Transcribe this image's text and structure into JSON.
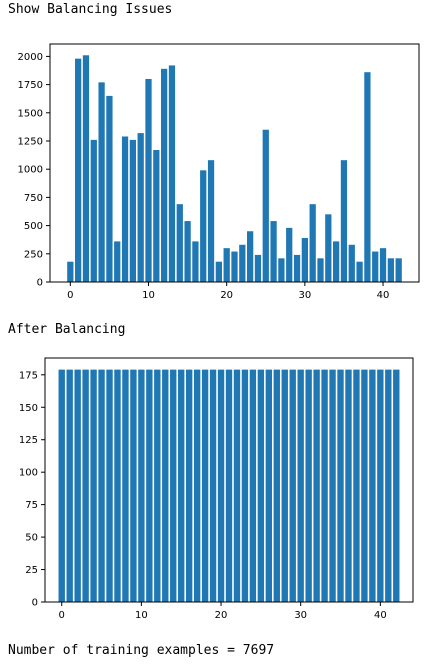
{
  "output": {
    "caption1": "Show Balancing Issues",
    "caption2": "After Balancing",
    "summary": "Number of training examples = 7697"
  },
  "colors": {
    "bar": "#1f77b4",
    "axis": "#000000"
  },
  "chart_data": [
    {
      "type": "bar",
      "title": "",
      "xlabel": "",
      "ylabel": "",
      "x": [
        0,
        1,
        2,
        3,
        4,
        5,
        6,
        7,
        8,
        9,
        10,
        11,
        12,
        13,
        14,
        15,
        16,
        17,
        18,
        19,
        20,
        21,
        22,
        23,
        24,
        25,
        26,
        27,
        28,
        29,
        30,
        31,
        32,
        33,
        34,
        35,
        36,
        37,
        38,
        39,
        40,
        41,
        42
      ],
      "values": [
        180,
        1980,
        2010,
        1260,
        1770,
        1650,
        360,
        1290,
        1260,
        1320,
        1800,
        1170,
        1890,
        1920,
        690,
        540,
        360,
        990,
        1080,
        180,
        300,
        270,
        330,
        450,
        240,
        1350,
        540,
        210,
        480,
        240,
        390,
        690,
        210,
        600,
        360,
        1080,
        330,
        180,
        1860,
        270,
        300,
        210,
        210
      ],
      "xlim": [
        -2.6,
        44.6
      ],
      "ylim": [
        0,
        2110
      ],
      "xticks": [
        0,
        10,
        20,
        30,
        40
      ],
      "yticks": [
        0,
        250,
        500,
        750,
        1000,
        1250,
        1500,
        1750,
        2000
      ],
      "grid": false
    },
    {
      "type": "bar",
      "title": "",
      "xlabel": "",
      "ylabel": "",
      "x": [
        0,
        1,
        2,
        3,
        4,
        5,
        6,
        7,
        8,
        9,
        10,
        11,
        12,
        13,
        14,
        15,
        16,
        17,
        18,
        19,
        20,
        21,
        22,
        23,
        24,
        25,
        26,
        27,
        28,
        29,
        30,
        31,
        32,
        33,
        34,
        35,
        36,
        37,
        38,
        39,
        40,
        41,
        42
      ],
      "values": [
        179,
        179,
        179,
        179,
        179,
        179,
        179,
        179,
        179,
        179,
        179,
        179,
        179,
        179,
        179,
        179,
        179,
        179,
        179,
        179,
        179,
        179,
        179,
        179,
        179,
        179,
        179,
        179,
        179,
        179,
        179,
        179,
        179,
        179,
        179,
        179,
        179,
        179,
        179,
        179,
        179,
        179,
        179
      ],
      "xlim": [
        -2.1,
        44.1
      ],
      "ylim": [
        0,
        187.95
      ],
      "xticks": [
        0,
        10,
        20,
        30,
        40
      ],
      "yticks": [
        0,
        25,
        50,
        75,
        100,
        125,
        150,
        175
      ],
      "grid": false
    }
  ]
}
